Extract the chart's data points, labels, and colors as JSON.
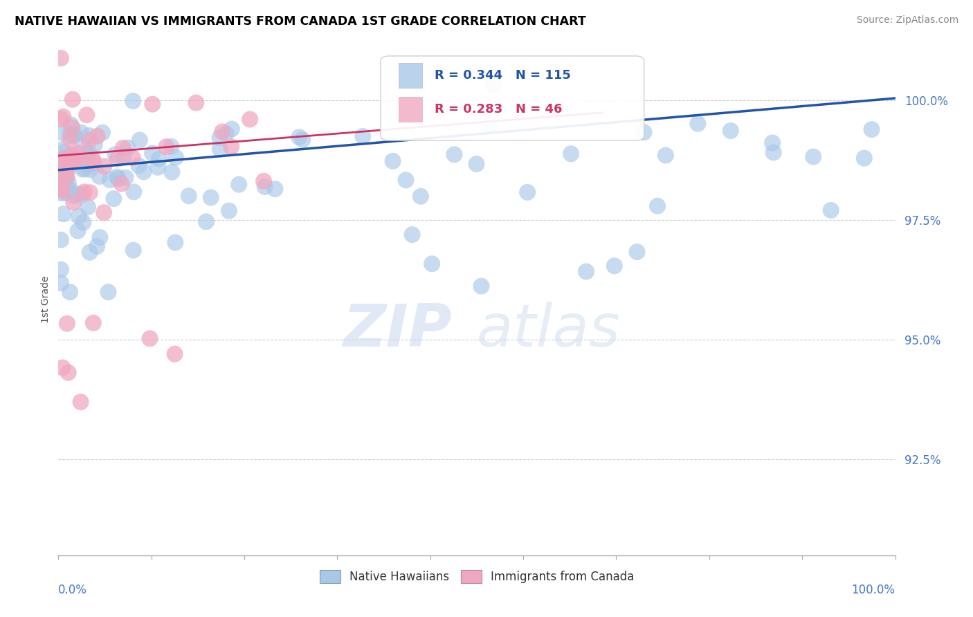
{
  "title": "NATIVE HAWAIIAN VS IMMIGRANTS FROM CANADA 1ST GRADE CORRELATION CHART",
  "source": "Source: ZipAtlas.com",
  "blue_label": "Native Hawaiians",
  "pink_label": "Immigrants from Canada",
  "blue_color": "#a8c8e8",
  "pink_color": "#f0a8c0",
  "blue_line_color": "#2255aa",
  "pink_line_color": "#cc3366",
  "blue_R": 0.344,
  "blue_N": 115,
  "pink_R": 0.283,
  "pink_N": 46,
  "xmin": 0.0,
  "xmax": 100.0,
  "ymin": 90.5,
  "ymax": 101.2,
  "ytick_vals": [
    92.5,
    95.0,
    97.5,
    100.0
  ],
  "watermark_zip": "ZIP",
  "watermark_atlas": "atlas",
  "background_color": "#ffffff",
  "grid_color": "#cccccc",
  "title_color": "#000000",
  "source_color": "#888888",
  "ytick_color": "#4477cc",
  "xtick_color": "#4477cc",
  "legend_box_color": "#cccccc",
  "blue_line_start_x": 0.0,
  "blue_line_start_y": 98.55,
  "blue_line_end_x": 100.0,
  "blue_line_end_y": 100.05,
  "pink_line_start_x": 0.0,
  "pink_line_start_y": 98.85,
  "pink_line_end_x": 65.0,
  "pink_line_end_y": 99.75
}
